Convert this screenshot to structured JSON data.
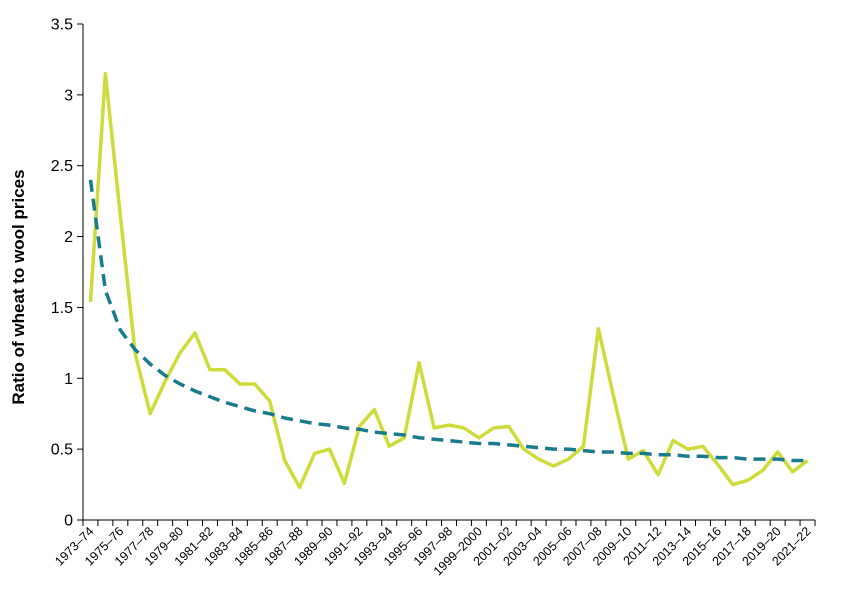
{
  "chart_data": {
    "type": "line",
    "title": "",
    "xlabel": "",
    "ylabel": "Ratio of wheat to wool prices",
    "ylim": [
      0,
      3.5
    ],
    "yticks": [
      "0",
      "0.5",
      "1",
      "1.5",
      "2",
      "2.5",
      "3",
      "3.5"
    ],
    "grid": false,
    "legend": "none",
    "categories": [
      "1973–74",
      "1974–75",
      "1975–76",
      "1976–77",
      "1977–78",
      "1978–79",
      "1979–80",
      "1980–81",
      "1981–82",
      "1982–83",
      "1983–84",
      "1984–85",
      "1985–86",
      "1986–87",
      "1987–88",
      "1988–89",
      "1989–90",
      "1990–91",
      "1991–92",
      "1992–93",
      "1993–94",
      "1994–95",
      "1995–96",
      "1996–97",
      "1997–98",
      "1998–99",
      "1999–2000",
      "2000–01",
      "2001–02",
      "2002–03",
      "2003–04",
      "2004–05",
      "2005–06",
      "2006–07",
      "2007–08",
      "2008–09",
      "2009–10",
      "2010–11",
      "2011–12",
      "2012–13",
      "2013–14",
      "2014–15",
      "2015–16",
      "2016–17",
      "2017–18",
      "2018–19",
      "2019–20",
      "2020–21",
      "2021–22"
    ],
    "xtick_labels": [
      "1973–74",
      "1975–76",
      "1977–78",
      "1979–80",
      "1981–82",
      "1983–84",
      "1985–86",
      "1987–88",
      "1989–90",
      "1991–92",
      "1993–94",
      "1995–96",
      "1997–98",
      "1999–2000",
      "2001–02",
      "2003–04",
      "2005–06",
      "2007–08",
      "2009–10",
      "2011–12",
      "2013–14",
      "2015–16",
      "2017–18",
      "2019–20",
      "2021–22"
    ],
    "series": [
      {
        "style": "solid",
        "color": "#cddc3a",
        "values": [
          1.54,
          3.15,
          2.15,
          1.17,
          0.75,
          0.98,
          1.18,
          1.32,
          1.06,
          1.06,
          0.96,
          0.96,
          0.84,
          0.42,
          0.23,
          0.47,
          0.5,
          0.26,
          0.66,
          0.78,
          0.52,
          0.58,
          1.11,
          0.65,
          0.67,
          0.65,
          0.58,
          0.65,
          0.66,
          0.5,
          0.43,
          0.38,
          0.43,
          0.52,
          1.35,
          0.88,
          0.43,
          0.49,
          0.32,
          0.56,
          0.5,
          0.52,
          0.39,
          0.25,
          0.28,
          0.35,
          0.48,
          0.34,
          0.42
        ]
      },
      {
        "style": "dashed",
        "color": "#1a7b8c",
        "values": [
          2.4,
          1.62,
          1.34,
          1.2,
          1.1,
          1.02,
          0.96,
          0.91,
          0.87,
          0.83,
          0.8,
          0.77,
          0.75,
          0.72,
          0.7,
          0.68,
          0.67,
          0.65,
          0.64,
          0.62,
          0.61,
          0.6,
          0.58,
          0.57,
          0.56,
          0.55,
          0.54,
          0.54,
          0.53,
          0.52,
          0.51,
          0.5,
          0.5,
          0.49,
          0.48,
          0.48,
          0.47,
          0.47,
          0.46,
          0.46,
          0.45,
          0.45,
          0.44,
          0.44,
          0.43,
          0.43,
          0.43,
          0.42,
          0.42
        ]
      }
    ]
  }
}
